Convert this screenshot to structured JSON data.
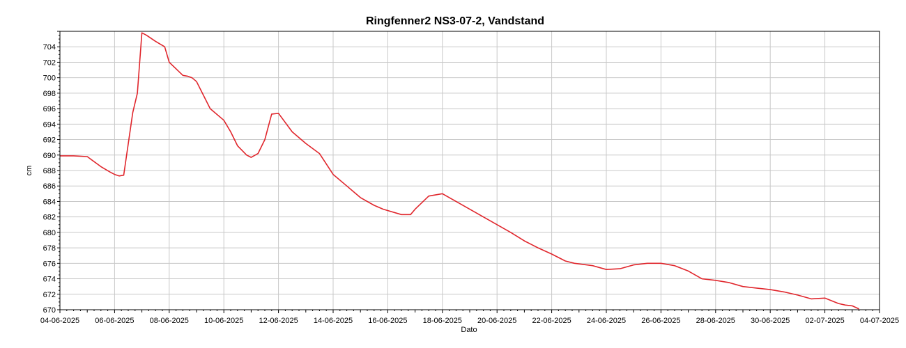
{
  "chart_data": {
    "type": "line",
    "title": "Ringfenner2 NS3-07-2, Vandstand",
    "xlabel": "Dato",
    "ylabel": "cm",
    "x_tick_labels": [
      "04-06-2025",
      "06-06-2025",
      "08-06-2025",
      "10-06-2025",
      "12-06-2025",
      "14-06-2025",
      "16-06-2025",
      "18-06-2025",
      "20-06-2025",
      "22-06-2025",
      "24-06-2025",
      "26-06-2025",
      "28-06-2025",
      "30-06-2025",
      "02-07-2025",
      "04-07-2025"
    ],
    "y_tick_labels": [
      "670",
      "672",
      "674",
      "676",
      "678",
      "680",
      "682",
      "684",
      "686",
      "688",
      "690",
      "692",
      "694",
      "696",
      "698",
      "700",
      "702",
      "704"
    ],
    "xlim": [
      "04-06-2025",
      "04-07-2025"
    ],
    "ylim": [
      670,
      706
    ],
    "grid": true,
    "colors": {
      "series": "#e0262c",
      "grid": "#c8c8c8",
      "axis": "#000000"
    },
    "series": [
      {
        "x": [
          "04-06-2025 00:00",
          "04-06-2025 12:00",
          "05-06-2025 00:00",
          "05-06-2025 12:00",
          "05-06-2025 20:00",
          "06-06-2025 00:00",
          "06-06-2025 04:00",
          "06-06-2025 08:00",
          "06-06-2025 14:00",
          "06-06-2025 16:00",
          "06-06-2025 20:00",
          "07-06-2025 00:00",
          "07-06-2025 04:00",
          "07-06-2025 12:00",
          "07-06-2025 20:00",
          "08-06-2025 00:00",
          "08-06-2025 12:00",
          "08-06-2025 16:00",
          "08-06-2025 20:00",
          "09-06-2025 00:00",
          "09-06-2025 12:00",
          "10-06-2025 00:00",
          "10-06-2025 06:00",
          "10-06-2025 12:00",
          "10-06-2025 20:00",
          "11-06-2025 00:00",
          "11-06-2025 06:00",
          "11-06-2025 12:00",
          "11-06-2025 18:00",
          "12-06-2025 00:00",
          "12-06-2025 12:00",
          "13-06-2025 00:00",
          "13-06-2025 12:00",
          "14-06-2025 00:00",
          "14-06-2025 12:00",
          "15-06-2025 00:00",
          "15-06-2025 12:00",
          "15-06-2025 20:00",
          "16-06-2025 12:00",
          "16-06-2025 20:00",
          "17-06-2025 00:00",
          "17-06-2025 12:00",
          "18-06-2025 00:00",
          "18-06-2025 12:00",
          "19-06-2025 00:00",
          "19-06-2025 12:00",
          "20-06-2025 00:00",
          "20-06-2025 12:00",
          "21-06-2025 00:00",
          "21-06-2025 12:00",
          "22-06-2025 00:00",
          "22-06-2025 12:00",
          "22-06-2025 20:00",
          "23-06-2025 12:00",
          "24-06-2025 00:00",
          "24-06-2025 12:00",
          "25-06-2025 00:00",
          "25-06-2025 12:00",
          "26-06-2025 00:00",
          "26-06-2025 12:00",
          "27-06-2025 00:00",
          "27-06-2025 12:00",
          "28-06-2025 00:00",
          "28-06-2025 12:00",
          "29-06-2025 00:00",
          "29-06-2025 12:00",
          "30-06-2025 00:00",
          "30-06-2025 12:00",
          "01-07-2025 00:00",
          "01-07-2025 12:00",
          "02-07-2025 00:00",
          "02-07-2025 12:00",
          "02-07-2025 18:00",
          "03-07-2025 00:00",
          "03-07-2025 06:00"
        ],
        "values": [
          689.9,
          689.9,
          689.8,
          688.5,
          687.8,
          687.5,
          687.3,
          687.4,
          693.5,
          695.5,
          698.0,
          705.8,
          705.5,
          704.7,
          704.0,
          702.0,
          700.3,
          700.2,
          700.0,
          699.5,
          696.0,
          694.5,
          693.0,
          691.2,
          690.0,
          689.7,
          690.2,
          692.0,
          695.3,
          695.4,
          693.0,
          691.5,
          690.2,
          687.5,
          686.0,
          684.5,
          683.5,
          683.0,
          682.3,
          682.3,
          683.0,
          684.7,
          685.0,
          684.0,
          683.0,
          682.0,
          681.0,
          680.0,
          678.9,
          678.0,
          677.2,
          676.3,
          676.0,
          675.7,
          675.2,
          675.3,
          675.8,
          676.0,
          676.0,
          675.7,
          675.0,
          674.0,
          673.8,
          673.5,
          673.0,
          672.8,
          672.6,
          672.3,
          671.9,
          671.4,
          671.5,
          670.8,
          670.6,
          670.5,
          670.1
        ]
      }
    ]
  }
}
